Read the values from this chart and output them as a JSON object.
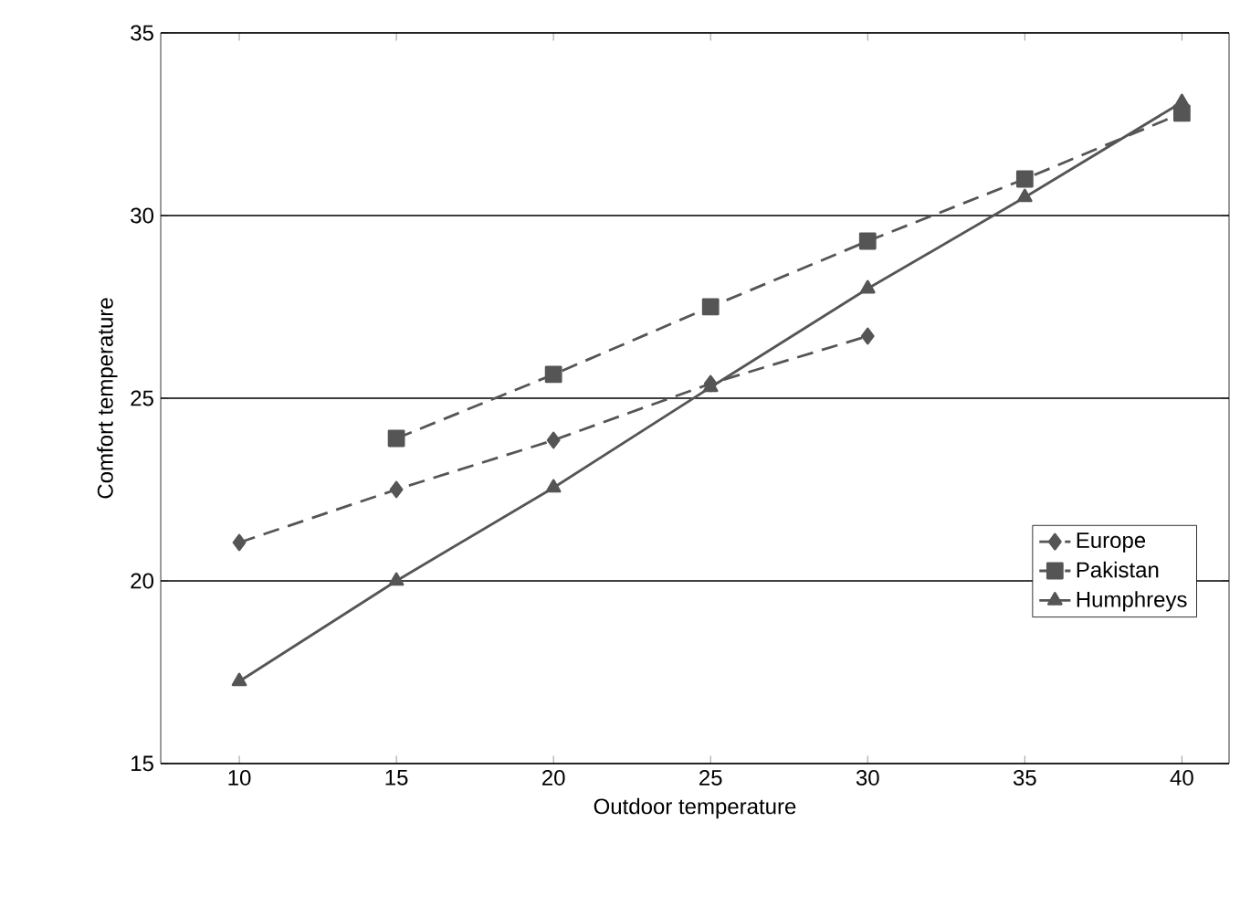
{
  "chart_data": {
    "type": "line",
    "xlabel": "Outdoor temperature",
    "ylabel": "Comfort temperature",
    "xlim": [
      7.5,
      41.5
    ],
    "xticks": [
      10,
      15,
      20,
      25,
      30,
      35,
      40
    ],
    "ylim": [
      15,
      35
    ],
    "yticks": [
      15,
      20,
      25,
      30,
      35
    ],
    "grid": "y",
    "legend": "bottom right",
    "series": [
      {
        "name": "Europe",
        "color": "#555555",
        "marker": "diamond",
        "line_style": "dashed",
        "x": [
          10,
          15,
          20,
          25,
          30
        ],
        "values": [
          21.05,
          22.5,
          23.85,
          25.4,
          26.7
        ]
      },
      {
        "name": "Pakistan",
        "color": "#555555",
        "marker": "square",
        "line_style": "dashed",
        "x": [
          15,
          20,
          25,
          30,
          35,
          40
        ],
        "values": [
          23.9,
          25.65,
          27.5,
          29.3,
          31,
          32.8
        ]
      },
      {
        "name": "Humphreys",
        "color": "#555555",
        "marker": "triangle",
        "line_style": "solid",
        "x": [
          10,
          15,
          20,
          25,
          30,
          35,
          40
        ],
        "values": [
          17.25,
          20,
          22.55,
          25.3,
          28,
          30.5,
          33.1
        ]
      }
    ]
  }
}
